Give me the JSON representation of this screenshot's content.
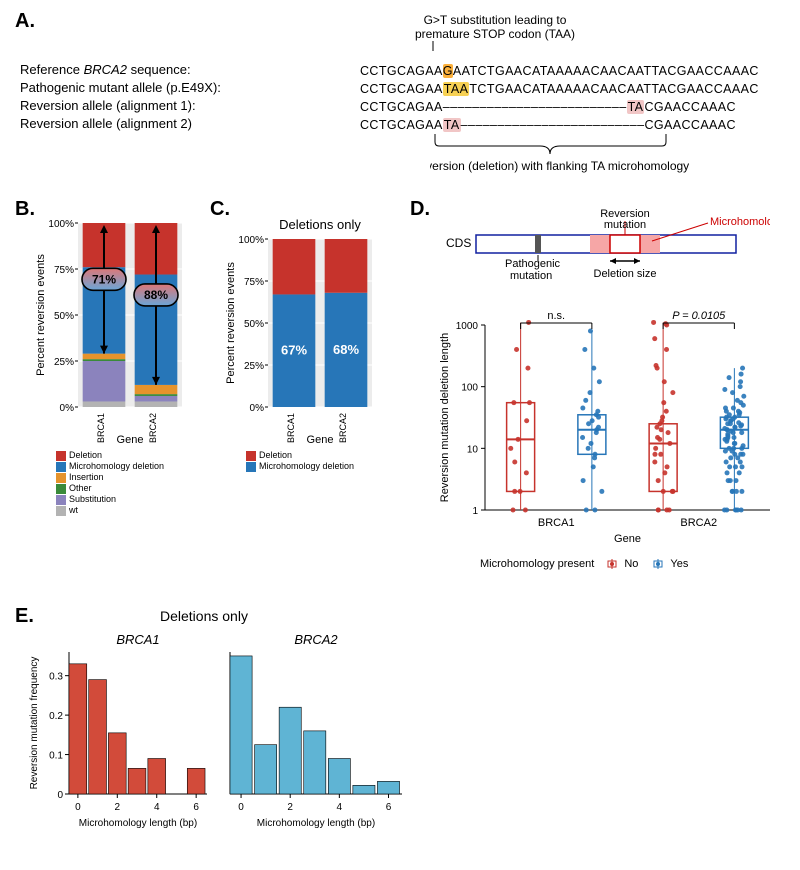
{
  "panelA": {
    "label": "A.",
    "header_top": "G>T substitution leading to",
    "header_bottom": "premature STOP codon (TAA)",
    "rows": [
      {
        "label": "Reference BRCA2 sequence:",
        "label_fontstyle": "normal",
        "label_ital_frag": "BRCA2"
      },
      {
        "label": "Pathogenic mutant allele (p.E49X):"
      },
      {
        "label": "Reversion allele (alignment 1):"
      },
      {
        "label": "Reversion allele (alignment 2)"
      }
    ],
    "seq_ref": "CCTGCAGAAGAATCTGAACATAAAAACAACAATTACGAACCAAAC",
    "seq_path": "CCTGCAGAATAATCTGAACATAAAAACAACAATTACGAACCAAAC",
    "seq_rev1": "CCTGCAGAA–––––––––––––––––––––––––TACGAACCAAAC",
    "seq_rev2": "CCTGCAGAATA–––––––––––––––––––––––––CGAACCAAAC",
    "bracket_label": "Reversion (deletion) with flanking TA microhomology"
  },
  "panelB": {
    "label": "B.",
    "ylabel": "Percent reversion events",
    "xlabel": "Gene",
    "yticks": [
      0,
      25,
      50,
      75,
      100
    ],
    "categories": [
      "BRCA1",
      "BRCA2"
    ],
    "segments_order": [
      "wt",
      "Substitution",
      "Other",
      "Insertion",
      "Microhomology deletion",
      "Deletion"
    ],
    "colors": {
      "Deletion": "#c6332c",
      "Microhomology deletion": "#2776b8",
      "Insertion": "#e5932c",
      "Other": "#3a8a3a",
      "Substitution": "#8b83bd",
      "wt": "#b3b3b3"
    },
    "data": {
      "BRCA1": {
        "wt": 3,
        "Substitution": 22,
        "Other": 1,
        "Insertion": 3,
        "Microhomology deletion": 47,
        "Deletion": 24
      },
      "BRCA2": {
        "wt": 3,
        "Substitution": 3,
        "Other": 1,
        "Insertion": 5,
        "Microhomology deletion": 60,
        "Deletion": 28
      }
    },
    "callouts": {
      "BRCA1": "71%",
      "BRCA2": "88%"
    },
    "legend_items": [
      "Deletion",
      "Microhomology deletion",
      "Insertion",
      "Other",
      "Substitution",
      "wt"
    ]
  },
  "panelC": {
    "label": "C.",
    "title": "Deletions only",
    "ylabel": "Percent reversion events",
    "xlabel": "Gene",
    "yticks": [
      0,
      25,
      50,
      75,
      100
    ],
    "categories": [
      "BRCA1",
      "BRCA2"
    ],
    "colors": {
      "Deletion": "#c6332c",
      "Microhomology deletion": "#2776b8"
    },
    "data": {
      "BRCA1": {
        "Microhomology deletion": 67,
        "Deletion": 33
      },
      "BRCA2": {
        "Microhomology deletion": 68,
        "Deletion": 32
      }
    },
    "labels": {
      "BRCA1": "67%",
      "BRCA2": "68%"
    },
    "legend_items": [
      "Deletion",
      "Microhomology deletion"
    ]
  },
  "panelD": {
    "label": "D.",
    "diagram": {
      "cds": "CDS",
      "pathogenic": "Pathogenic\nmutation",
      "reversion": "Reversion\nmutation",
      "micro": "Microhomology?",
      "del_size": "Deletion size"
    },
    "ylabel": "Reversion mutation deletion length",
    "xlabel": "Gene",
    "yticks": [
      1,
      10,
      100,
      1000
    ],
    "categories": [
      "BRCA1",
      "BRCA2"
    ],
    "sig": {
      "BRCA1": "n.s.",
      "BRCA2": "P = 0.0105",
      "BRCA2_style": "italic"
    },
    "legend_label": "Microhomology present",
    "legend_items": [
      {
        "name": "No",
        "color": "#c6332c"
      },
      {
        "name": "Yes",
        "color": "#2776b8"
      }
    ],
    "colors": {
      "No": "#c6332c",
      "Yes": "#2776b8"
    },
    "box": {
      "BRCA1_No": {
        "min": 1,
        "q1": 2,
        "med": 14,
        "q3": 55,
        "max": 1100
      },
      "BRCA1_Yes": {
        "min": 1,
        "q1": 8,
        "med": 20,
        "q3": 35,
        "max": 800
      },
      "BRCA2_No": {
        "min": 1,
        "q1": 2,
        "med": 12,
        "q3": 25,
        "max": 1100
      },
      "BRCA2_Yes": {
        "min": 1,
        "q1": 10,
        "med": 20,
        "q3": 32,
        "max": 200
      }
    },
    "jitter": {
      "BRCA1_No": [
        1,
        1,
        2,
        2,
        4,
        6,
        10,
        14,
        28,
        55,
        55,
        200,
        400,
        1100
      ],
      "BRCA1_Yes": [
        1,
        1,
        2,
        3,
        5,
        7,
        8,
        10,
        12,
        15,
        18,
        20,
        22,
        25,
        28,
        32,
        35,
        40,
        45,
        60,
        80,
        120,
        200,
        400,
        800
      ],
      "BRCA2_No": [
        1,
        1,
        1,
        1,
        2,
        2,
        2,
        3,
        4,
        5,
        6,
        8,
        8,
        10,
        12,
        14,
        15,
        18,
        20,
        22,
        25,
        28,
        32,
        40,
        55,
        80,
        120,
        200,
        220,
        400,
        600,
        1000,
        1100,
        1050
      ],
      "BRCA2_Yes": [
        1,
        1,
        1,
        1,
        1,
        1,
        2,
        2,
        2,
        2,
        3,
        3,
        3,
        4,
        4,
        5,
        5,
        5,
        6,
        6,
        7,
        7,
        8,
        8,
        8,
        9,
        9,
        10,
        10,
        10,
        11,
        12,
        12,
        13,
        14,
        14,
        15,
        15,
        16,
        17,
        18,
        18,
        19,
        20,
        20,
        21,
        22,
        22,
        23,
        24,
        25,
        25,
        26,
        28,
        28,
        30,
        30,
        32,
        32,
        35,
        35,
        38,
        40,
        40,
        45,
        45,
        50,
        55,
        60,
        70,
        80,
        90,
        100,
        120,
        140,
        160,
        200
      ]
    }
  },
  "panelE": {
    "label": "E.",
    "title": "Deletions only",
    "sub1": "BRCA1",
    "sub2": "BRCA2",
    "ylabel": "Reversion mutation frequency",
    "xlabel": "Microhomology length (bp)",
    "yticks": [
      0,
      0.1,
      0.2,
      0.3
    ],
    "xticks": [
      0,
      2,
      4,
      6
    ],
    "bar_width": 0.9,
    "colors": {
      "BRCA1": "#d24b3a",
      "BRCA2": "#5fb4d4"
    },
    "data": {
      "BRCA1": {
        "0": 0.33,
        "1": 0.29,
        "2": 0.155,
        "3": 0.065,
        "4": 0.09,
        "5": 0,
        "6": 0.065
      },
      "BRCA2": {
        "0": 0.35,
        "1": 0.125,
        "2": 0.22,
        "3": 0.16,
        "4": 0.09,
        "5": 0.022,
        "6": 0.032
      }
    }
  }
}
